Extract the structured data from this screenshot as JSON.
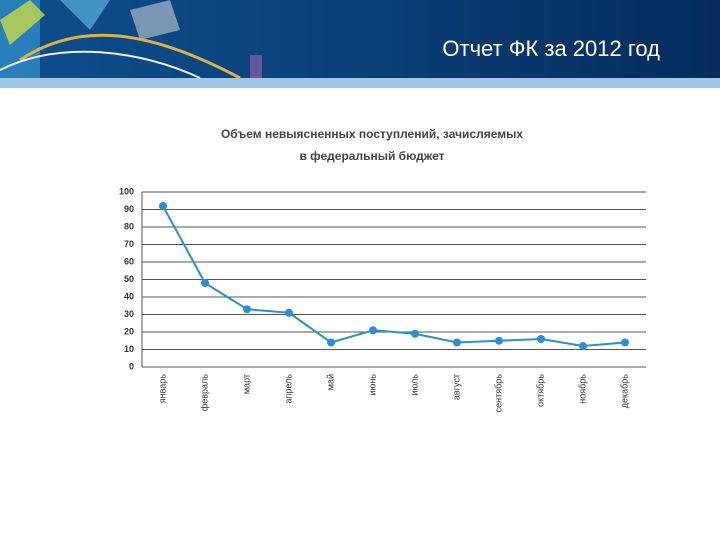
{
  "slide": {
    "title": "Отчет ФК за 2012 год"
  },
  "chart_data": {
    "type": "line",
    "title": [
      "Объем невыясненных поступлений, зачисляемых",
      "в федеральный бюджет"
    ],
    "categories": [
      "январь",
      "февраль",
      "март",
      "апрель",
      "май",
      "июнь",
      "июль",
      "август",
      "сентябрь",
      "октябрь",
      "ноябрь",
      "декабрь"
    ],
    "values": [
      92,
      48,
      33,
      31,
      14,
      21,
      19,
      14,
      15,
      16,
      12,
      14
    ],
    "color": "#2b8fd0",
    "ylim": [
      0,
      100
    ],
    "yticks": [
      0,
      10,
      20,
      30,
      40,
      50,
      60,
      70,
      80,
      90,
      100
    ],
    "grid": true
  }
}
